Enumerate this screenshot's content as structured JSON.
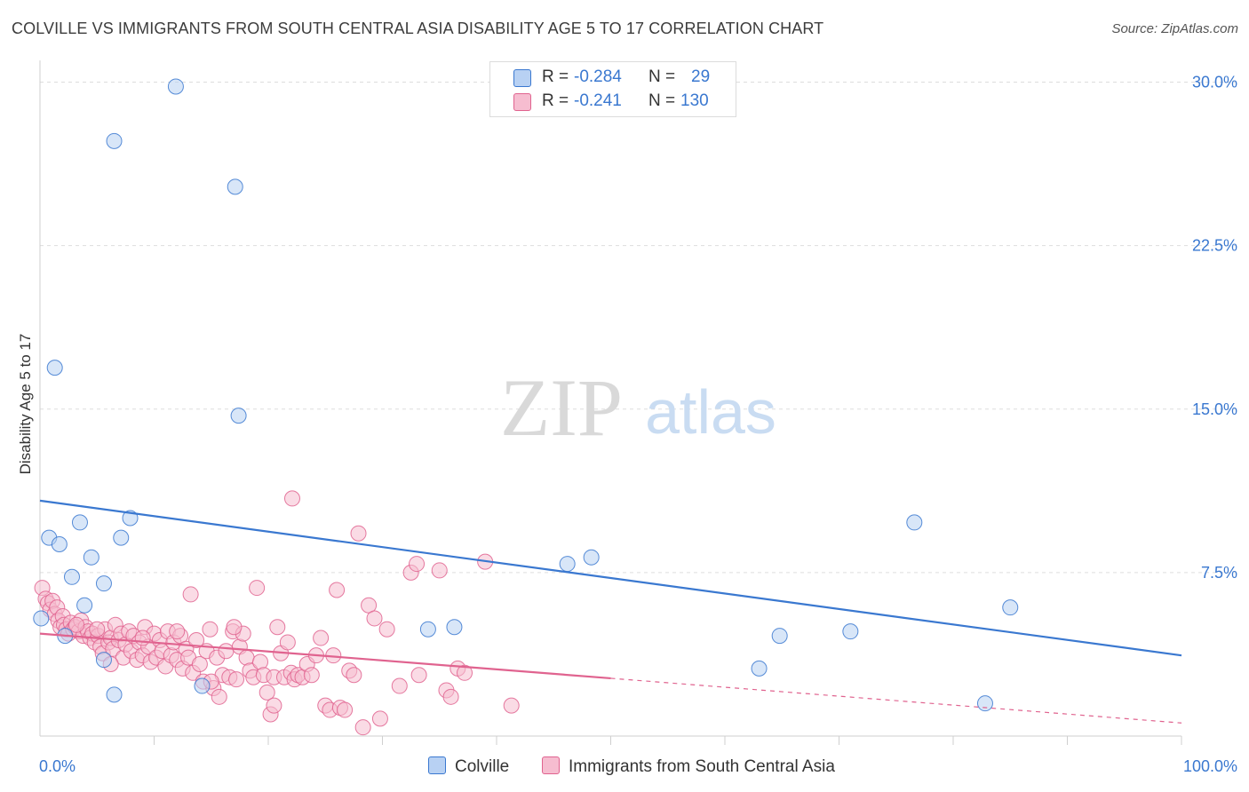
{
  "header": {
    "title": "COLVILLE VS IMMIGRANTS FROM SOUTH CENTRAL ASIA DISABILITY AGE 5 TO 17 CORRELATION CHART",
    "source": "Source: ZipAtlas.com"
  },
  "colors": {
    "blue": "#3a78d0",
    "blue_fill": "#b8d1f3",
    "pink": "#e0638f",
    "pink_fill": "#f6bdd0",
    "grid": "#dddddd"
  },
  "legend": {
    "rows": [
      {
        "r_label": "R =",
        "r_value": "-0.284",
        "n_label": "N =",
        "n_value": "29"
      },
      {
        "r_label": "R =",
        "r_value": "-0.241",
        "n_label": "N =",
        "n_value": "130"
      }
    ]
  },
  "watermark": {
    "zip": "ZIP",
    "atlas": "atlas"
  },
  "chart_data": {
    "type": "scatter",
    "title": "COLVILLE VS IMMIGRANTS FROM SOUTH CENTRAL ASIA DISABILITY AGE 5 TO 17 CORRELATION CHART",
    "xlabel": "",
    "ylabel": "Disability Age 5 to 17",
    "xlim": [
      0,
      100
    ],
    "ylim": [
      0,
      31
    ],
    "x_tick_labels": [
      "0.0%",
      "100.0%"
    ],
    "y_ticks": [
      7.5,
      15.0,
      22.5,
      30.0
    ],
    "y_tick_labels": [
      "7.5%",
      "15.0%",
      "22.5%",
      "30.0%"
    ],
    "legend_position": "top-center",
    "series": [
      {
        "name": "Colville",
        "color": "#3a78d0",
        "trend": {
          "x": [
            0,
            100
          ],
          "y": [
            10.8,
            3.7
          ],
          "dashed_from": null
        },
        "points": [
          [
            0.1,
            5.4
          ],
          [
            1.3,
            16.9
          ],
          [
            0.8,
            9.1
          ],
          [
            1.7,
            8.8
          ],
          [
            2.8,
            7.3
          ],
          [
            3.5,
            9.8
          ],
          [
            3.9,
            6.0
          ],
          [
            4.5,
            8.2
          ],
          [
            5.6,
            7.0
          ],
          [
            5.6,
            3.5
          ],
          [
            6.5,
            27.3
          ],
          [
            6.5,
            1.9
          ],
          [
            7.1,
            9.1
          ],
          [
            7.9,
            10.0
          ],
          [
            11.9,
            29.8
          ],
          [
            17.1,
            25.2
          ],
          [
            17.4,
            14.7
          ],
          [
            2.2,
            4.6
          ],
          [
            14.2,
            2.3
          ],
          [
            34.0,
            4.9
          ],
          [
            36.3,
            5.0
          ],
          [
            46.2,
            7.9
          ],
          [
            48.3,
            8.2
          ],
          [
            63.0,
            3.1
          ],
          [
            64.8,
            4.6
          ],
          [
            71.0,
            4.8
          ],
          [
            76.6,
            9.8
          ],
          [
            85.0,
            5.9
          ],
          [
            82.8,
            1.5
          ]
        ]
      },
      {
        "name": "Immigrants from South Central Asia",
        "color": "#e0638f",
        "trend": {
          "x": [
            0,
            100
          ],
          "y": [
            4.7,
            0.6
          ],
          "dashed_from": 50
        },
        "points": [
          [
            0.2,
            6.8
          ],
          [
            0.5,
            6.3
          ],
          [
            0.7,
            6.1
          ],
          [
            0.9,
            5.8
          ],
          [
            1.1,
            6.2
          ],
          [
            1.3,
            5.6
          ],
          [
            1.5,
            5.9
          ],
          [
            1.6,
            5.3
          ],
          [
            1.8,
            5.0
          ],
          [
            2.0,
            5.5
          ],
          [
            2.1,
            5.1
          ],
          [
            2.3,
            4.9
          ],
          [
            2.5,
            4.7
          ],
          [
            2.7,
            5.2
          ],
          [
            2.9,
            4.9
          ],
          [
            3.1,
            5.0
          ],
          [
            3.4,
            4.8
          ],
          [
            3.6,
            5.3
          ],
          [
            3.8,
            4.6
          ],
          [
            4.0,
            5.0
          ],
          [
            4.2,
            4.8
          ],
          [
            4.4,
            4.5
          ],
          [
            4.6,
            4.7
          ],
          [
            4.8,
            4.3
          ],
          [
            5.1,
            4.6
          ],
          [
            5.3,
            4.1
          ],
          [
            5.5,
            3.8
          ],
          [
            5.7,
            4.9
          ],
          [
            6.0,
            4.3
          ],
          [
            6.2,
            4.5
          ],
          [
            6.4,
            4.0
          ],
          [
            6.6,
            5.1
          ],
          [
            6.9,
            4.4
          ],
          [
            7.1,
            4.7
          ],
          [
            7.3,
            3.6
          ],
          [
            7.5,
            4.2
          ],
          [
            7.8,
            4.8
          ],
          [
            8.0,
            3.9
          ],
          [
            8.2,
            4.6
          ],
          [
            8.5,
            3.5
          ],
          [
            8.7,
            4.3
          ],
          [
            9.0,
            3.7
          ],
          [
            9.2,
            5.0
          ],
          [
            9.5,
            4.1
          ],
          [
            9.7,
            3.4
          ],
          [
            10.0,
            4.7
          ],
          [
            10.2,
            3.6
          ],
          [
            10.5,
            4.4
          ],
          [
            10.7,
            3.9
          ],
          [
            11.0,
            3.2
          ],
          [
            11.2,
            4.8
          ],
          [
            11.5,
            3.7
          ],
          [
            11.7,
            4.3
          ],
          [
            12.0,
            3.5
          ],
          [
            12.3,
            4.6
          ],
          [
            12.5,
            3.1
          ],
          [
            12.8,
            4.0
          ],
          [
            13.0,
            3.6
          ],
          [
            13.2,
            6.5
          ],
          [
            13.4,
            2.9
          ],
          [
            13.7,
            4.4
          ],
          [
            14.0,
            3.3
          ],
          [
            14.3,
            2.5
          ],
          [
            14.6,
            3.9
          ],
          [
            14.9,
            4.9
          ],
          [
            15.2,
            2.2
          ],
          [
            15.5,
            3.6
          ],
          [
            15.7,
            1.8
          ],
          [
            16.0,
            2.8
          ],
          [
            16.3,
            3.9
          ],
          [
            16.6,
            2.7
          ],
          [
            16.9,
            4.8
          ],
          [
            17.2,
            2.6
          ],
          [
            17.5,
            4.1
          ],
          [
            17.8,
            4.7
          ],
          [
            18.1,
            3.6
          ],
          [
            18.4,
            3.0
          ],
          [
            18.7,
            2.7
          ],
          [
            19.0,
            6.8
          ],
          [
            19.3,
            3.4
          ],
          [
            19.6,
            2.8
          ],
          [
            19.9,
            2.0
          ],
          [
            20.2,
            1.0
          ],
          [
            20.5,
            2.7
          ],
          [
            20.8,
            5.0
          ],
          [
            21.1,
            3.8
          ],
          [
            21.4,
            2.7
          ],
          [
            21.7,
            4.3
          ],
          [
            22.0,
            2.9
          ],
          [
            22.3,
            2.6
          ],
          [
            22.6,
            2.8
          ],
          [
            23.0,
            2.7
          ],
          [
            23.4,
            3.3
          ],
          [
            23.8,
            2.8
          ],
          [
            24.2,
            3.7
          ],
          [
            24.6,
            4.5
          ],
          [
            25.0,
            1.4
          ],
          [
            25.4,
            1.2
          ],
          [
            25.7,
            3.7
          ],
          [
            26.0,
            6.7
          ],
          [
            26.3,
            1.3
          ],
          [
            26.7,
            1.2
          ],
          [
            27.1,
            3.0
          ],
          [
            27.5,
            2.8
          ],
          [
            27.9,
            9.3
          ],
          [
            28.3,
            0.4
          ],
          [
            28.8,
            6.0
          ],
          [
            29.3,
            5.4
          ],
          [
            29.8,
            0.8
          ],
          [
            30.4,
            4.9
          ],
          [
            31.5,
            2.3
          ],
          [
            32.5,
            7.5
          ],
          [
            33.0,
            7.9
          ],
          [
            35.0,
            7.6
          ],
          [
            35.6,
            2.1
          ],
          [
            36.0,
            1.8
          ],
          [
            36.6,
            3.1
          ],
          [
            37.2,
            2.9
          ],
          [
            39.0,
            8.0
          ],
          [
            41.3,
            1.4
          ],
          [
            20.5,
            1.4
          ],
          [
            12.0,
            4.8
          ],
          [
            3.2,
            5.1
          ],
          [
            6.2,
            3.3
          ],
          [
            22.1,
            10.9
          ],
          [
            33.2,
            2.8
          ],
          [
            9.0,
            4.5
          ],
          [
            17.0,
            5.0
          ],
          [
            5.0,
            4.9
          ],
          [
            15.0,
            2.5
          ]
        ]
      }
    ]
  }
}
